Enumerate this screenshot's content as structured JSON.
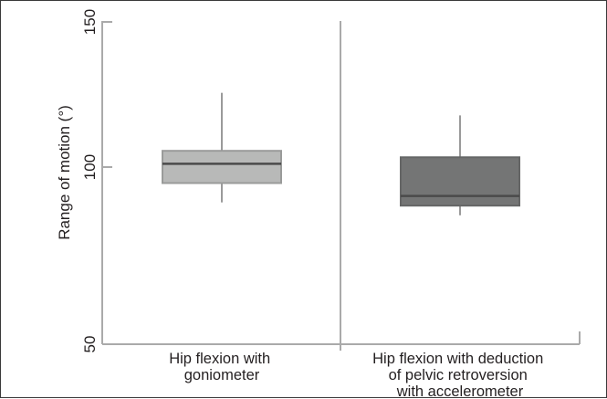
{
  "chart_data": {
    "type": "boxplot",
    "ylabel": "Range of motion (°)",
    "ylim": [
      50,
      150
    ],
    "yticks": [
      50,
      100,
      150
    ],
    "ytick_labels": [
      "50",
      "100",
      "150"
    ],
    "grid": false,
    "categories": [
      [
        "Hip flexion with",
        "goniometer"
      ],
      [
        "Hip flexion with deduction",
        "of pelvic retroversion",
        "with accelerometer"
      ]
    ],
    "series": [
      {
        "min": 94,
        "q1": 100,
        "median": 106,
        "q3": 110,
        "max": 128,
        "fill": "#b8b9b8",
        "stroke": "#9a9b9a"
      },
      {
        "min": 90,
        "q1": 93,
        "median": 96,
        "q3": 108,
        "max": 121,
        "fill": "#747575",
        "stroke": "#656666"
      }
    ],
    "colors": {
      "axis": "#aaaaaa",
      "median": "#4a4a4a",
      "whisker": "#9a9a9a",
      "text": "#231f20"
    }
  }
}
